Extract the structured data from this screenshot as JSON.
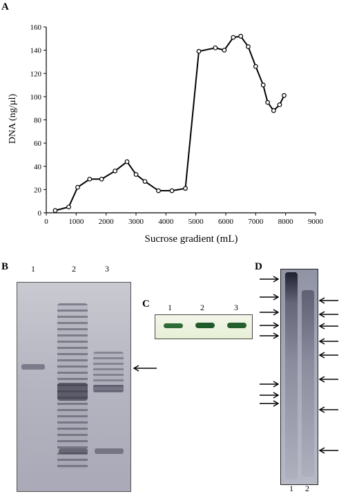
{
  "panels": {
    "a": {
      "letter": "A"
    },
    "b": {
      "letter": "B",
      "lanes": [
        "1",
        "2",
        "3"
      ]
    },
    "c": {
      "letter": "C",
      "lanes": [
        "1",
        "2",
        "3"
      ]
    },
    "d": {
      "letter": "D",
      "lanes": [
        "1",
        "2"
      ]
    }
  },
  "chart_data": {
    "type": "line",
    "title": "",
    "xlabel": "Sucrose gradient (mL)",
    "ylabel": "DNA (ng/µl)",
    "xlim": [
      0,
      9000
    ],
    "ylim": [
      0,
      160
    ],
    "xticks": [
      "0",
      "1000",
      "2000",
      "3000",
      "4000",
      "5000",
      "6000",
      "7000",
      "8000",
      "9000"
    ],
    "yticks": [
      "0",
      "20",
      "40",
      "60",
      "80",
      "100",
      "120",
      "140",
      "160"
    ],
    "grid": false,
    "marker": "open-circle",
    "series": [
      {
        "x": [
          300,
          750,
          1050,
          1450,
          1850,
          2300,
          2700,
          3000,
          3300,
          3750,
          4200,
          4650,
          5100,
          5650,
          5950,
          6250,
          6500,
          6750,
          7000,
          7250,
          7400,
          7600,
          7800,
          7950
        ],
        "y": [
          2,
          5,
          22,
          29,
          29,
          36,
          44,
          33,
          27,
          19,
          19,
          21,
          139,
          142,
          140,
          151,
          152,
          143,
          126,
          110,
          95,
          88,
          93,
          101
        ]
      }
    ]
  }
}
